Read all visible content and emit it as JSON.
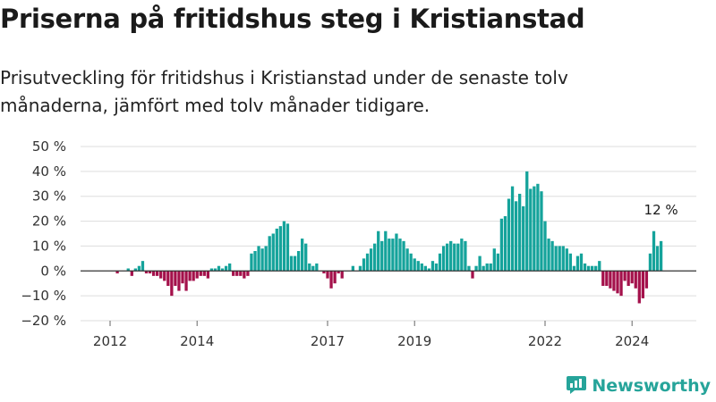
{
  "title": "Priserna på fritidshus steg i Kristianstad",
  "subtitle": "Prisutveckling för fritidshus i Kristianstad under de senaste tolv månaderna, jämfört med tolv månader tidigare.",
  "brand": {
    "name": "Newsworthy",
    "logo_icon": "bar-chart-icon",
    "color": "#26a49a"
  },
  "colors": {
    "positive": "#15a39b",
    "negative": "#a4114b",
    "zero_line": "#333333",
    "grid": "#dddddd"
  },
  "chart_data": {
    "type": "bar",
    "grid": true,
    "ylim": [
      -20,
      50
    ],
    "y_ticks": [
      {
        "value": 50,
        "label": "50 %"
      },
      {
        "value": 40,
        "label": "40 %"
      },
      {
        "value": 30,
        "label": "30 %"
      },
      {
        "value": 20,
        "label": "20 %"
      },
      {
        "value": 10,
        "label": "10 %"
      },
      {
        "value": 0,
        "label": "0 %"
      },
      {
        "value": -10,
        "label": "−10 %"
      },
      {
        "value": -20,
        "label": "−20 %"
      }
    ],
    "x_ticks": [
      {
        "index": 0,
        "label": "2012"
      },
      {
        "index": 24,
        "label": "2014"
      },
      {
        "index": 60,
        "label": "2017"
      },
      {
        "index": 84,
        "label": "2019"
      },
      {
        "index": 120,
        "label": "2022"
      },
      {
        "index": 144,
        "label": "2024"
      }
    ],
    "values": [
      0,
      0,
      -1,
      0,
      0,
      1,
      -2,
      1,
      2,
      4,
      -1,
      -1,
      -2,
      -2,
      -3,
      -4,
      -6,
      -10,
      -6,
      -8,
      -5,
      -8,
      -4,
      -4,
      -3,
      -2,
      -2,
      -3,
      1,
      1,
      2,
      1,
      2,
      3,
      -2,
      -2,
      -2,
      -3,
      -2,
      7,
      8,
      10,
      9,
      10,
      14,
      15,
      17,
      18,
      20,
      19,
      6,
      6,
      8,
      13,
      11,
      3,
      2,
      3,
      0,
      -1,
      -3,
      -7,
      -5,
      -1,
      -3,
      0,
      0,
      2,
      0,
      2,
      5,
      7,
      9,
      11,
      16,
      12,
      16,
      13,
      13,
      15,
      13,
      12,
      9,
      7,
      5,
      4,
      3,
      2,
      1,
      4,
      3,
      7,
      10,
      11,
      12,
      11,
      11,
      13,
      12,
      2,
      -3,
      2,
      6,
      2,
      3,
      3,
      9,
      7,
      21,
      22,
      29,
      34,
      28,
      31,
      26,
      40,
      33,
      34,
      35,
      32,
      20,
      13,
      12,
      10,
      10,
      10,
      9,
      7,
      2,
      6,
      7,
      3,
      2,
      2,
      2,
      4,
      -6,
      -6,
      -7,
      -8,
      -9,
      -10,
      -4,
      -6,
      -5,
      -7,
      -13,
      -11,
      -7,
      7,
      16,
      10,
      12
    ],
    "annotation": {
      "index": 152,
      "label": "12 %"
    }
  }
}
